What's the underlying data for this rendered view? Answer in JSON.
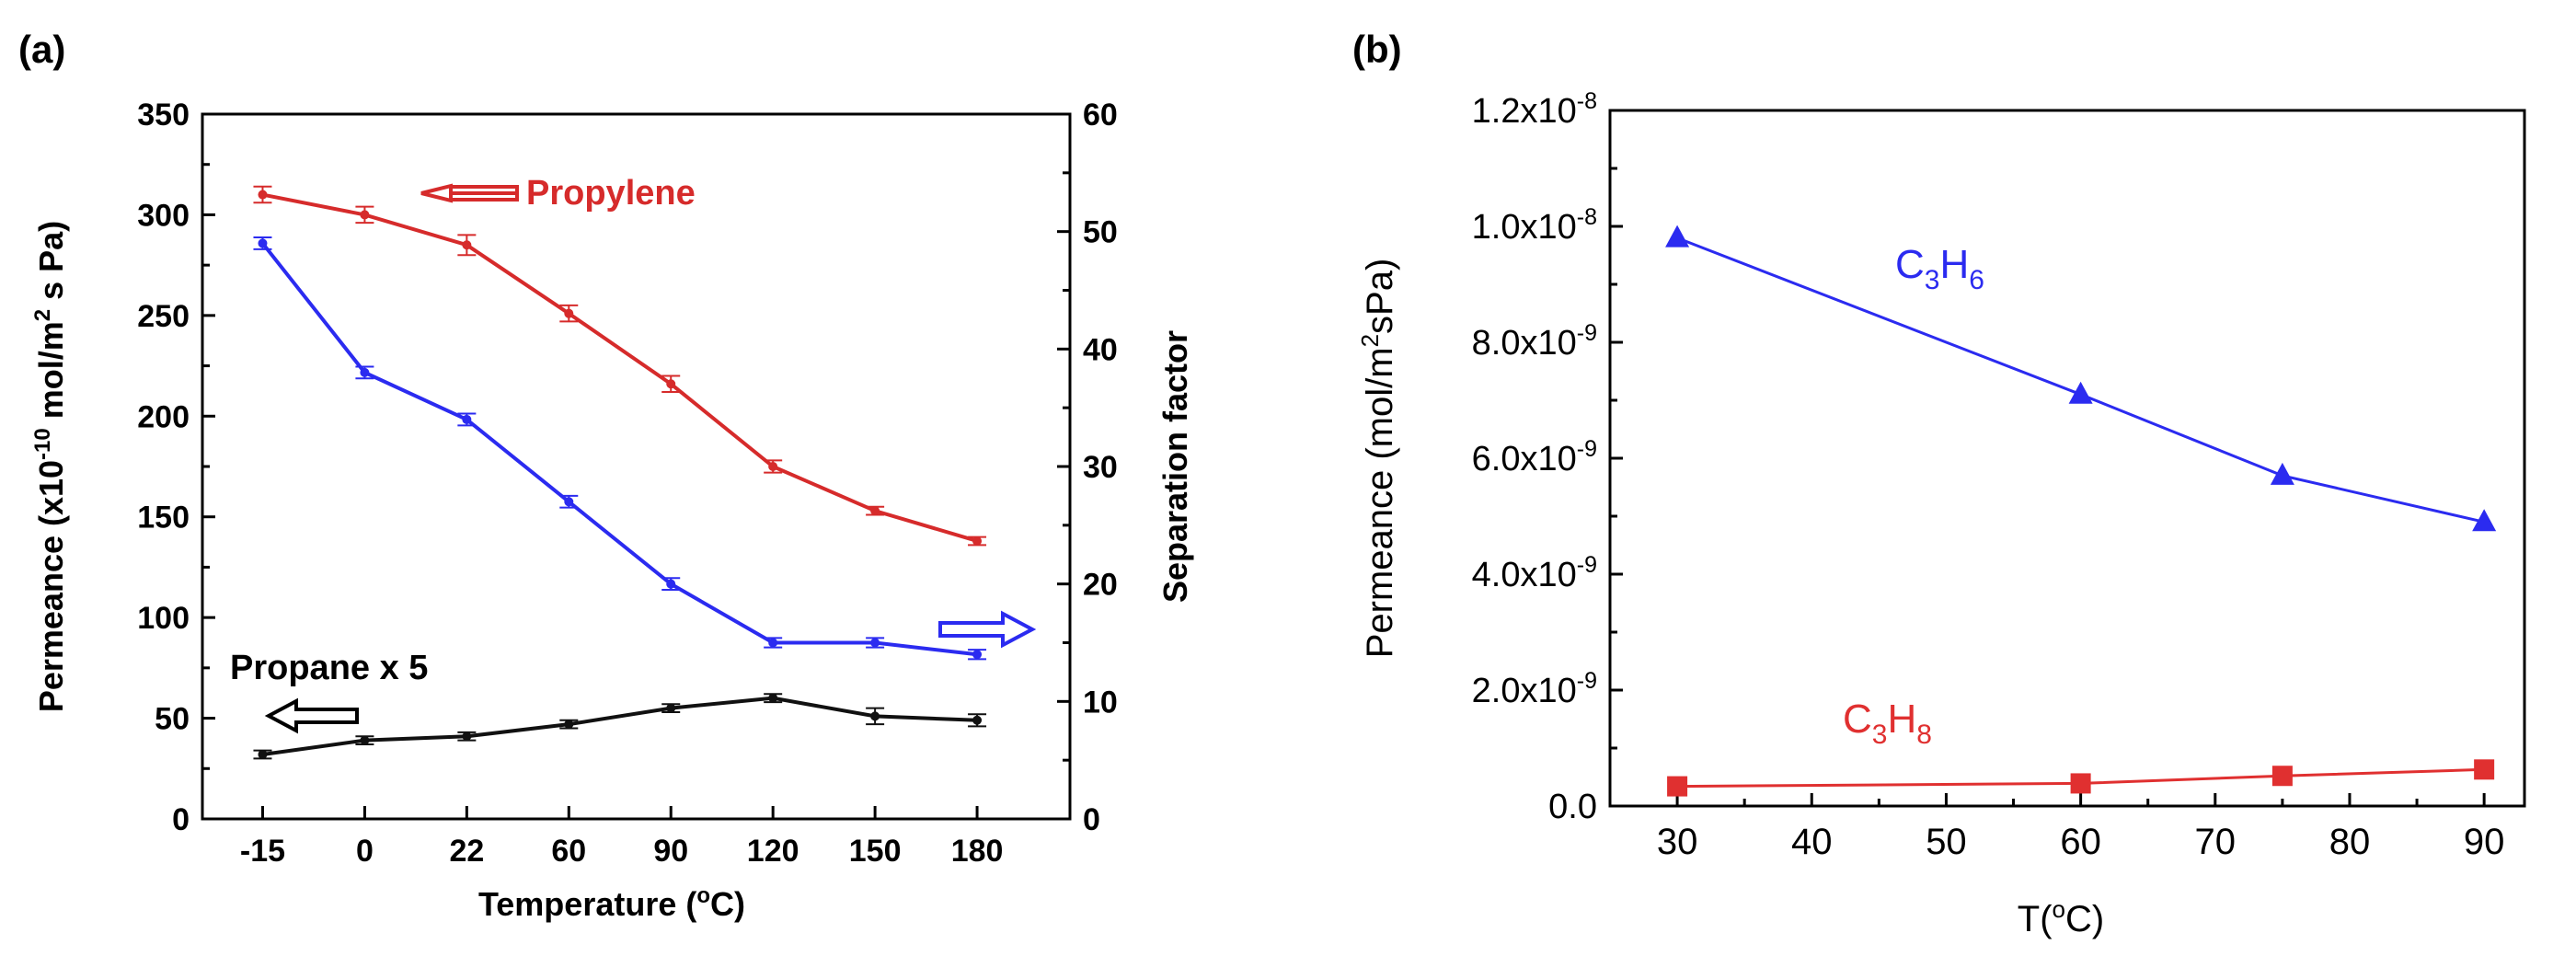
{
  "chart_data": [
    {
      "panel_label": "(a)",
      "type": "line",
      "categories": [
        "-15",
        "0",
        "22",
        "60",
        "90",
        "120",
        "150",
        "180"
      ],
      "xlabel": "Temperature (",
      "xlabel_sup": "o",
      "xlabel_end": "C)",
      "ylabel_pre": "Permeance (x10",
      "ylabel_exp": "-10",
      "ylabel_mid": " mol/m",
      "ylabel_sq": "2",
      "ylabel_end": " s Pa)",
      "ylim": [
        0,
        350
      ],
      "yticks": [
        "0",
        "50",
        "100",
        "150",
        "200",
        "250",
        "300",
        "350"
      ],
      "y2label": "Separation factor",
      "y2lim": [
        0,
        60
      ],
      "y2ticks": [
        "0",
        "10",
        "20",
        "30",
        "40",
        "50",
        "60"
      ],
      "series": [
        {
          "name": "Propylene",
          "axis": "left",
          "color": "#d62b2b",
          "values": [
            310,
            300,
            285,
            251,
            216,
            175,
            153,
            138
          ],
          "error": [
            4,
            4,
            5,
            4,
            4,
            3,
            2,
            2
          ]
        },
        {
          "name": "Separation factor",
          "axis": "right",
          "color": "#2b2bf0",
          "values": [
            49,
            38,
            34,
            27,
            20,
            15,
            15,
            14
          ],
          "error": [
            0.5,
            0.5,
            0.5,
            0.5,
            0.5,
            0.4,
            0.4,
            0.4
          ]
        },
        {
          "name": "Propane x 5",
          "axis": "left",
          "color": "#111111",
          "values": [
            32,
            39,
            41,
            47,
            55,
            60,
            51,
            49
          ],
          "error": [
            2,
            2,
            2,
            2,
            2,
            2,
            4,
            3
          ]
        }
      ],
      "annotations": {
        "propylene": "Propylene",
        "propane": "Propane x 5"
      }
    },
    {
      "panel_label": "(b)",
      "type": "line",
      "xlabel": "T(",
      "xlabel_sup": "o",
      "xlabel_end": "C)",
      "xlim": [
        25,
        93
      ],
      "xticks": [
        "30",
        "40",
        "50",
        "60",
        "70",
        "80",
        "90"
      ],
      "ylabel_pre": "Permeance (mol/m",
      "ylabel_sq": "2",
      "ylabel_end": "sPa)",
      "ylim": [
        0,
        1.2e-08
      ],
      "yticks": [
        {
          "base": "0.0",
          "exp": ""
        },
        {
          "base": "2.0x10",
          "exp": "-9"
        },
        {
          "base": "4.0x10",
          "exp": "-9"
        },
        {
          "base": "6.0x10",
          "exp": "-9"
        },
        {
          "base": "8.0x10",
          "exp": "-9"
        },
        {
          "base": "1.0x10",
          "exp": "-8"
        },
        {
          "base": "1.2x10",
          "exp": "-8"
        }
      ],
      "series": [
        {
          "name": "C3H6",
          "marker": "triangle",
          "color": "#2b2bf0",
          "x": [
            30,
            60,
            75,
            90
          ],
          "values": [
            9.8e-09,
            7.1e-09,
            5.7e-09,
            4.9e-09
          ]
        },
        {
          "name": "C3H8",
          "marker": "square",
          "color": "#e03030",
          "x": [
            30,
            60,
            75,
            90
          ],
          "values": [
            3.4e-10,
            3.9e-10,
            5.2e-10,
            6.3e-10
          ]
        }
      ],
      "annotations": {
        "c3h6": {
          "c": "C",
          "n1": "3",
          "h": "H",
          "n2": "6"
        },
        "c3h8": {
          "c": "C",
          "n1": "3",
          "h": "H",
          "n2": "8"
        }
      }
    }
  ]
}
